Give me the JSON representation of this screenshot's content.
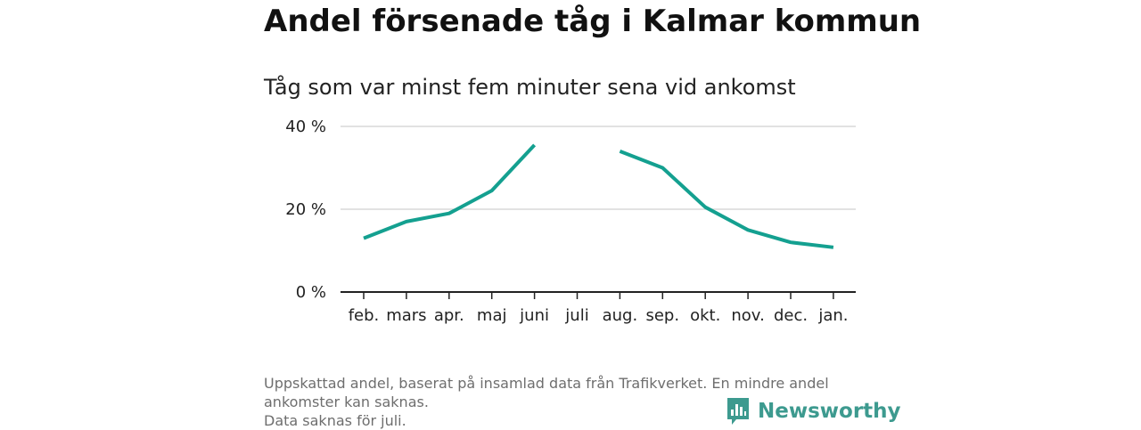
{
  "header": {
    "title": "Andel försenade tåg i Kalmar kommun",
    "subtitle": "Tåg som var minst fem minuter sena vid ankomst"
  },
  "chart_data": {
    "type": "line",
    "title": "Andel försenade tåg i Kalmar kommun",
    "subtitle": "Tåg som var minst fem minuter sena vid ankomst",
    "categories": [
      "feb.",
      "mars",
      "apr.",
      "maj",
      "juni",
      "juli",
      "aug.",
      "sep.",
      "okt.",
      "nov.",
      "dec.",
      "jan."
    ],
    "series": [
      {
        "values": [
          13.0,
          17.0,
          19.0,
          24.5,
          35.5,
          null,
          34.0,
          30.0,
          20.5,
          15.0,
          12.0,
          10.8
        ]
      }
    ],
    "ylim": [
      0,
      40
    ],
    "yticks": [
      0,
      20,
      40
    ],
    "ytick_labels": [
      "0 %",
      "20 %",
      "40 %"
    ],
    "grid": true,
    "line_color": "#14a090"
  },
  "footer": {
    "line1": "Uppskattad andel, baserat på insamlad data från Trafikverket. En mindre andel",
    "line2": "ankomster kan saknas.",
    "line3": "Data saknas för juli."
  },
  "brand": {
    "name": "Newsworthy",
    "icon": "newsworthy-logo-icon",
    "color": "#3d9a8f"
  }
}
